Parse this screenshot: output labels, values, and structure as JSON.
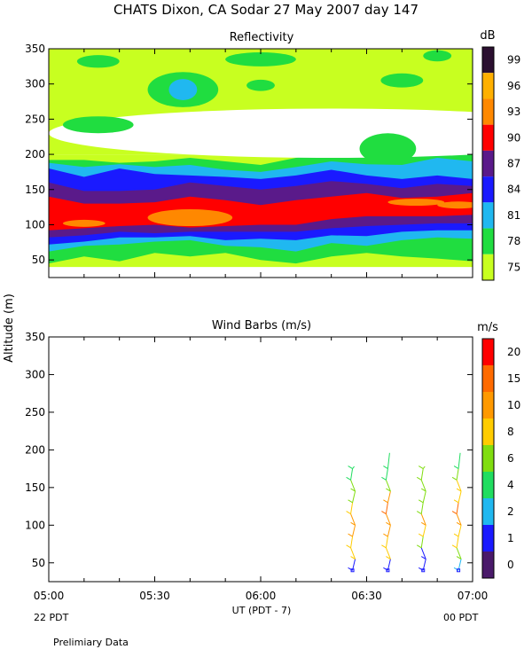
{
  "chart_data": [
    {
      "type": "heatmap",
      "title": "CHATS Dixon, CA  Sodar  27 May 2007  day 147",
      "subtitle": "Reflectivity",
      "ylabel": "Altitude (m)",
      "colorbar_unit": "dB",
      "colorbar_levels": [
        "99",
        "96",
        "93",
        "90",
        "87",
        "84",
        "81",
        "78",
        "75"
      ],
      "colorbar_colors": [
        "#2b1030",
        "#ffb000",
        "#ff8800",
        "#ff0000",
        "#5a1a8a",
        "#1a1aff",
        "#20b8f0",
        "#20dd40",
        "#c8ff20"
      ],
      "ylim": [
        25,
        350
      ],
      "yticks": [
        "350",
        "300",
        "250",
        "200",
        "150",
        "100",
        "50"
      ],
      "x": [
        0,
        5,
        10,
        15,
        20,
        25,
        30,
        35,
        40,
        45,
        50,
        55,
        60
      ],
      "layers_m": [
        {
          "color": "#c8ff20",
          "y0": [
            40,
            40,
            40,
            40,
            40,
            40,
            40,
            40,
            40,
            40,
            40,
            40,
            40
          ],
          "y1": [
            200,
            200,
            200,
            200,
            200,
            200,
            200,
            200,
            200,
            200,
            200,
            200,
            200
          ]
        },
        {
          "color": "#20dd40",
          "y0": [
            45,
            55,
            48,
            60,
            55,
            60,
            50,
            45,
            55,
            60,
            55,
            52,
            48
          ],
          "y1": [
            192,
            192,
            188,
            190,
            195,
            190,
            185,
            195,
            205,
            195,
            200,
            205,
            210
          ]
        },
        {
          "color": "#20b8f0",
          "y0": [
            62,
            70,
            72,
            76,
            78,
            70,
            68,
            62,
            74,
            70,
            78,
            82,
            80
          ],
          "y1": [
            188,
            182,
            186,
            182,
            185,
            178,
            175,
            182,
            190,
            186,
            185,
            195,
            190
          ]
        },
        {
          "color": "#1a1aff",
          "y0": [
            72,
            76,
            82,
            82,
            84,
            78,
            80,
            78,
            85,
            84,
            90,
            92,
            92
          ],
          "y1": [
            180,
            168,
            180,
            172,
            170,
            168,
            165,
            170,
            178,
            170,
            165,
            170,
            165
          ]
        },
        {
          "color": "#5a1a8a",
          "y0": [
            82,
            85,
            90,
            88,
            90,
            90,
            90,
            90,
            95,
            98,
            100,
            102,
            102
          ],
          "y1": [
            160,
            148,
            148,
            150,
            160,
            155,
            150,
            155,
            162,
            158,
            152,
            158,
            155
          ]
        },
        {
          "color": "#ff0000",
          "y0": [
            92,
            95,
            98,
            100,
            96,
            98,
            100,
            100,
            108,
            112,
            112,
            112,
            114
          ],
          "y1": [
            140,
            130,
            130,
            132,
            140,
            135,
            128,
            135,
            140,
            145,
            138,
            140,
            145
          ]
        }
      ],
      "blobs_m": [
        {
          "color": "#ffffff",
          "cx": 40,
          "cy": 230,
          "rx": 40,
          "ry": 35
        },
        {
          "color": "#20dd40",
          "cx": 7,
          "cy": 332,
          "rx": 3,
          "ry": 9
        },
        {
          "color": "#20dd40",
          "cx": 19,
          "cy": 292,
          "rx": 5,
          "ry": 25
        },
        {
          "color": "#20b8f0",
          "cx": 19,
          "cy": 292,
          "rx": 2,
          "ry": 15
        },
        {
          "color": "#20dd40",
          "cx": 30,
          "cy": 335,
          "rx": 5,
          "ry": 10
        },
        {
          "color": "#20dd40",
          "cx": 7,
          "cy": 242,
          "rx": 5,
          "ry": 12
        },
        {
          "color": "#20dd40",
          "cx": 30,
          "cy": 298,
          "rx": 2,
          "ry": 8
        },
        {
          "color": "#20dd40",
          "cx": 50,
          "cy": 305,
          "rx": 3,
          "ry": 10
        },
        {
          "color": "#20dd40",
          "cx": 55,
          "cy": 340,
          "rx": 2,
          "ry": 8
        },
        {
          "color": "#20dd40",
          "cx": 48,
          "cy": 208,
          "rx": 4,
          "ry": 22
        },
        {
          "color": "#ff8800",
          "cx": 20,
          "cy": 110,
          "rx": 6,
          "ry": 12
        },
        {
          "color": "#ff8800",
          "cx": 5,
          "cy": 102,
          "rx": 3,
          "ry": 5
        },
        {
          "color": "#ff8800",
          "cx": 52,
          "cy": 132,
          "rx": 4,
          "ry": 5
        },
        {
          "color": "#ff8800",
          "cx": 58,
          "cy": 128,
          "rx": 3,
          "ry": 5
        }
      ]
    },
    {
      "type": "scatter",
      "subtitle": "Wind Barbs (m/s)",
      "xlabel": "UT  (PDT - 7)",
      "ylabel": "Altitude (m)",
      "colorbar_unit": "m/s",
      "colorbar_levels": [
        "20",
        "15",
        "10",
        "8",
        "6",
        "4",
        "2",
        "1",
        "0"
      ],
      "colorbar_colors": [
        "#ff0000",
        "#ff6a00",
        "#ff9900",
        "#ffcc00",
        "#80dd10",
        "#20dd60",
        "#20b8f0",
        "#1a1aff",
        "#4a1a6a"
      ],
      "ylim": [
        25,
        350
      ],
      "yticks": [
        "350",
        "300",
        "250",
        "200",
        "150",
        "100",
        "50"
      ],
      "xticks": [
        "05:00",
        "05:30",
        "06:00",
        "06:30",
        "07:00"
      ],
      "x_start_label": "22 PDT",
      "x_end_label": "00 PDT",
      "xlim_min": [
        0,
        120
      ],
      "barb_profiles": [
        {
          "t_min": 86,
          "alts": [
            40,
            55,
            70,
            85,
            100,
            115,
            130,
            145,
            160,
            175
          ],
          "speeds": [
            1,
            8,
            8,
            10,
            10,
            8,
            6,
            6,
            4,
            4
          ],
          "tops": [
            178
          ]
        },
        {
          "t_min": 96,
          "alts": [
            40,
            55,
            70,
            85,
            100,
            115,
            130,
            145,
            160,
            175
          ],
          "speeds": [
            1,
            8,
            8,
            10,
            10,
            15,
            10,
            6,
            4,
            4
          ],
          "tops": [
            196
          ]
        },
        {
          "t_min": 106,
          "alts": [
            40,
            55,
            70,
            85,
            100,
            115,
            130,
            145,
            160,
            175
          ],
          "speeds": [
            1,
            1,
            6,
            8,
            10,
            6,
            6,
            6,
            6,
            6
          ],
          "tops": [
            178
          ]
        },
        {
          "t_min": 116,
          "alts": [
            40,
            55,
            70,
            85,
            100,
            115,
            130,
            145,
            160,
            175
          ],
          "speeds": [
            2,
            6,
            8,
            8,
            10,
            15,
            8,
            8,
            6,
            4
          ],
          "tops": [
            196
          ]
        }
      ]
    }
  ],
  "footer": "Prelimiary Data"
}
